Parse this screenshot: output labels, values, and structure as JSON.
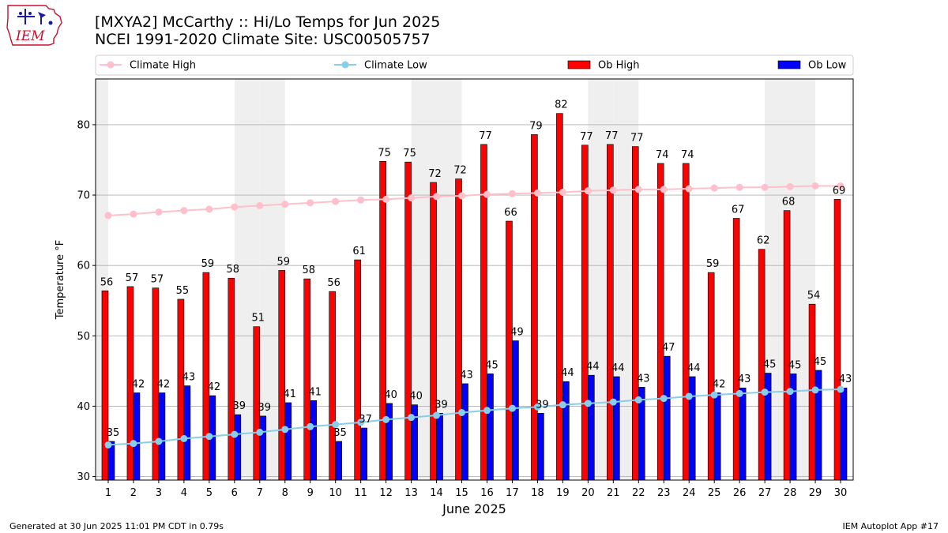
{
  "header": {
    "logo_text": "IEM",
    "title_line1": "[MXYA2] McCarthy :: Hi/Lo Temps for Jun 2025",
    "title_line2": "NCEI 1991-2020 Climate Site: USC00505757"
  },
  "footer": {
    "generated": "Generated at 30 Jun 2025 11:01 PM CDT in 0.79s",
    "app": "IEM Autoplot App #17"
  },
  "colors": {
    "climate_high": "#ffc0cb",
    "climate_low": "#87ceeb",
    "ob_high": "#ff0000",
    "ob_low": "#0000ff",
    "weekend_shade": "#efefef"
  },
  "chart_data": {
    "type": "bar",
    "xlabel": "June 2025",
    "ylabel": "Temperature °F",
    "ylim": [
      29.5,
      86.5
    ],
    "yticks": [
      30,
      40,
      50,
      60,
      70,
      80
    ],
    "grid": true,
    "legend_position": "top",
    "categories": [
      "1",
      "2",
      "3",
      "4",
      "5",
      "6",
      "7",
      "8",
      "9",
      "10",
      "11",
      "12",
      "13",
      "14",
      "15",
      "16",
      "17",
      "18",
      "19",
      "20",
      "21",
      "22",
      "23",
      "24",
      "25",
      "26",
      "27",
      "28",
      "29",
      "30"
    ],
    "shaded_days": [
      1,
      7,
      8,
      14,
      15,
      21,
      22,
      28,
      29
    ],
    "series": [
      {
        "name": "Ob High",
        "kind": "bar",
        "values": [
          56.4,
          57.0,
          56.8,
          55.2,
          59.0,
          58.2,
          51.3,
          59.3,
          58.1,
          56.3,
          60.8,
          74.8,
          74.7,
          71.8,
          72.3,
          77.2,
          66.3,
          78.6,
          81.6,
          77.1,
          77.2,
          76.9,
          74.5,
          74.5,
          59.0,
          66.7,
          62.3,
          67.8,
          54.5,
          69.4
        ],
        "labels": [
          "56",
          "57",
          "57",
          "55",
          "59",
          "58",
          "51",
          "59",
          "58",
          "56",
          "61",
          "75",
          "75",
          "72",
          "72",
          "77",
          "66",
          "79",
          "82",
          "77",
          "77",
          "77",
          "74",
          "74",
          "59",
          "67",
          "62",
          "68",
          "54",
          "69"
        ]
      },
      {
        "name": "Ob Low",
        "kind": "bar",
        "values": [
          35.0,
          41.9,
          41.9,
          42.9,
          41.5,
          38.8,
          38.6,
          40.5,
          40.8,
          35.0,
          36.9,
          40.4,
          40.2,
          39.0,
          43.2,
          44.6,
          49.3,
          39.0,
          43.5,
          44.4,
          44.2,
          42.7,
          47.1,
          44.2,
          41.9,
          42.6,
          44.7,
          44.6,
          45.1,
          42.6
        ],
        "labels": [
          "35",
          "42",
          "42",
          "43",
          "42",
          "39",
          "39",
          "41",
          "41",
          "35",
          "37",
          "40",
          "40",
          "39",
          "43",
          "45",
          "49",
          "39",
          "44",
          "44",
          "44",
          "43",
          "47",
          "44",
          "42",
          "43",
          "45",
          "45",
          "45",
          "43"
        ]
      },
      {
        "name": "Climate High",
        "kind": "line",
        "values": [
          67.1,
          67.3,
          67.6,
          67.8,
          68.0,
          68.3,
          68.5,
          68.7,
          68.9,
          69.1,
          69.3,
          69.4,
          69.6,
          69.8,
          69.9,
          70.1,
          70.2,
          70.3,
          70.4,
          70.6,
          70.7,
          70.8,
          70.8,
          70.9,
          71.0,
          71.1,
          71.1,
          71.2,
          71.3,
          71.3
        ]
      },
      {
        "name": "Climate Low",
        "kind": "line",
        "values": [
          34.5,
          34.7,
          35.0,
          35.4,
          35.7,
          36.0,
          36.3,
          36.7,
          37.1,
          37.4,
          37.7,
          38.1,
          38.4,
          38.7,
          39.1,
          39.4,
          39.7,
          39.9,
          40.2,
          40.4,
          40.6,
          40.9,
          41.1,
          41.4,
          41.6,
          41.8,
          42.0,
          42.1,
          42.3,
          42.4
        ]
      }
    ]
  }
}
